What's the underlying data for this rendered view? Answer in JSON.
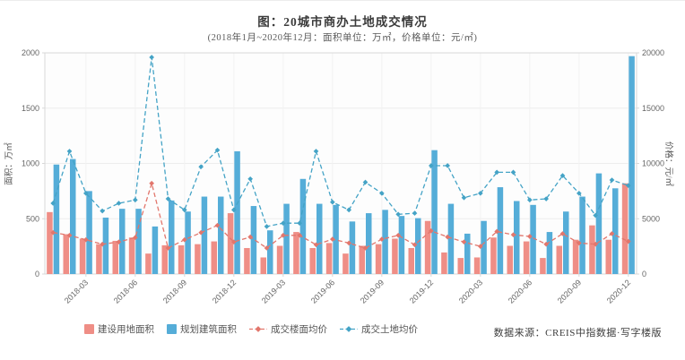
{
  "header": {
    "title": "图：20城市商办土地成交情况",
    "subtitle": "(2018年1月~2020年12月：面积单位：万㎡，价格单位：元/㎡)"
  },
  "footer": {
    "source": "数据来源：CREIS中指数据·写字楼版"
  },
  "colors": {
    "bar_construction": "#ef8e86",
    "bar_planned": "#55add8",
    "line_floor_price": "#e2766c",
    "line_land_price": "#44a3c6",
    "grid": "#ededed",
    "grid_vertical": "#f2f2f2",
    "axis_border": "#d8d8d8",
    "tick_text": "#666666",
    "panel_bg": "#fdfdfd"
  },
  "chart_data": {
    "type": "bar",
    "note": "combo chart: two bar series on left axis, two dashed line series on right axis",
    "title": "图：20城市商办土地成交情况",
    "subtitle": "(2018年1月~2020年12月：面积单位：万㎡，价格单位：元/㎡)",
    "grid": true,
    "legend_position": "bottom",
    "categories": [
      "2018-01",
      "2018-02",
      "2018-03",
      "2018-04",
      "2018-05",
      "2018-06",
      "2018-07",
      "2018-08",
      "2018-09",
      "2018-10",
      "2018-11",
      "2018-12",
      "2019-01",
      "2019-02",
      "2019-03",
      "2019-04",
      "2019-05",
      "2019-06",
      "2019-07",
      "2019-08",
      "2019-09",
      "2019-10",
      "2019-11",
      "2019-12",
      "2020-01",
      "2020-02",
      "2020-03",
      "2020-04",
      "2020-05",
      "2020-06",
      "2020-07",
      "2020-08",
      "2020-09",
      "2020-10",
      "2020-11",
      "2020-12"
    ],
    "x_tick_labels": [
      "2018-03",
      "2018-06",
      "2018-09",
      "2018-12",
      "2019-03",
      "2019-06",
      "2019-09",
      "2019-12",
      "2020-03",
      "2020-06",
      "2020-09",
      "2020-12"
    ],
    "left_axis": {
      "label": "面积：万㎡",
      "ticks": [
        0,
        500,
        1000,
        1500,
        2000
      ],
      "range": [
        0,
        2000
      ]
    },
    "right_axis": {
      "label": "价格：元/㎡",
      "ticks": [
        0,
        5000,
        10000,
        15000,
        20000
      ],
      "range": [
        0,
        20000
      ]
    },
    "series": [
      {
        "name": "建设用地面积",
        "kind": "bar",
        "axis": "left",
        "color": "#ef8e86",
        "values": [
          560,
          360,
          320,
          270,
          300,
          330,
          185,
          260,
          260,
          270,
          295,
          550,
          235,
          150,
          255,
          380,
          235,
          280,
          185,
          255,
          270,
          320,
          235,
          480,
          195,
          145,
          150,
          330,
          255,
          295,
          145,
          255,
          310,
          440,
          310,
          820
        ]
      },
      {
        "name": "规划建筑面积",
        "kind": "bar",
        "axis": "left",
        "color": "#55add8",
        "values": [
          990,
          1040,
          750,
          510,
          590,
          590,
          430,
          665,
          565,
          700,
          700,
          1110,
          615,
          395,
          635,
          860,
          635,
          625,
          475,
          550,
          580,
          525,
          505,
          1120,
          635,
          365,
          480,
          785,
          660,
          625,
          380,
          565,
          700,
          910,
          775,
          1970
        ]
      },
      {
        "name": "成交楼面均价",
        "kind": "line",
        "axis": "right",
        "color": "#e2766c",
        "values": [
          3750,
          3500,
          3100,
          2700,
          2900,
          3300,
          8200,
          2350,
          3100,
          3750,
          4400,
          2900,
          3350,
          2350,
          3500,
          3500,
          2650,
          3150,
          2800,
          2350,
          3150,
          3500,
          2650,
          3900,
          3350,
          2900,
          2500,
          3850,
          3550,
          3400,
          2700,
          3650,
          2800,
          2700,
          3650,
          2950
        ]
      },
      {
        "name": "成交土地均价",
        "kind": "line",
        "axis": "right",
        "color": "#44a3c6",
        "values": [
          6400,
          11100,
          7300,
          5700,
          6400,
          6700,
          19600,
          6800,
          5800,
          9700,
          11200,
          5800,
          8600,
          4300,
          4600,
          4600,
          11100,
          6500,
          5800,
          8300,
          7300,
          5400,
          5500,
          9800,
          9800,
          6900,
          7300,
          9200,
          9200,
          6700,
          6800,
          8900,
          7300,
          5300,
          8500,
          8000
        ]
      }
    ]
  }
}
